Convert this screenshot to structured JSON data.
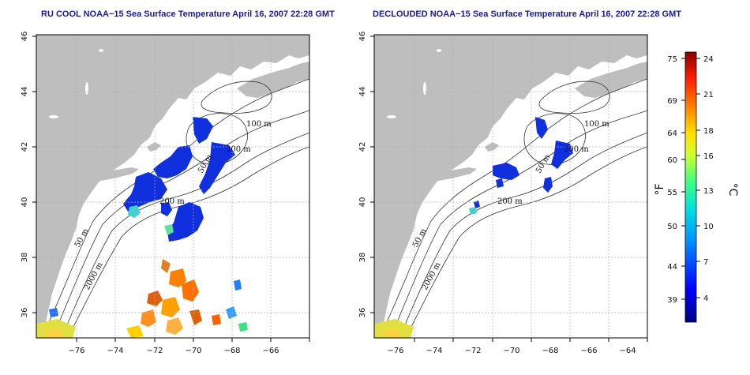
{
  "panels": [
    {
      "id": "left",
      "title": "RU COOL NOAA−15 Sea Surface Temperature April 16, 2007 22:28 GMT",
      "contour_labels": [
        "100 m",
        "200 m",
        "50 m",
        "200 m",
        "50 m",
        "2000 m"
      ]
    },
    {
      "id": "right",
      "title": "DECLOUDED NOAA−15 Sea Surface Temperature April 16, 2007 22:28 GMT",
      "contour_labels": [
        "100 m",
        "200 m",
        "50 m",
        "200 m",
        "50 m",
        "2000 m"
      ]
    }
  ],
  "axes": {
    "x_ticks": [
      "−76",
      "−74",
      "−72",
      "−70",
      "−68",
      "−66",
      "−64"
    ],
    "y_ticks": [
      "46",
      "44",
      "42",
      "40",
      "38",
      "36"
    ]
  },
  "colorbar": {
    "fahrenheit": [
      "75",
      "69",
      "64",
      "60",
      "55",
      "50",
      "44",
      "39"
    ],
    "celsius": [
      "24",
      "21",
      "18",
      "16",
      "13",
      "10",
      "7",
      "4"
    ],
    "unit_f": "°F",
    "unit_c": "°C"
  },
  "colors": {
    "land": "#bebebe",
    "sea": "#ffffff",
    "title": "#1a1a9a",
    "grid": "#b0b0b0",
    "cold": "#1030e0"
  }
}
